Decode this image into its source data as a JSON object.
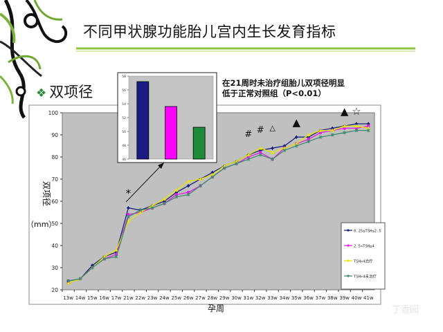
{
  "slide": {
    "title": "不同甲状腺功能胎儿宫内生长发育指标",
    "bullet": "双项径",
    "note_line1": "在21周时未治疗组胎儿双项径明显",
    "note_line2": "低于正常对照组（P<0.01）",
    "watermark": "丁香园"
  },
  "colors": {
    "plot_bg": "#c0c0c0",
    "series1": "#1b1f7a",
    "series2": "#e020e0",
    "series3": "#e8e800",
    "series4": "#3e8a6e",
    "inset_bar1": "#1a1a80",
    "inset_bar2": "#ff00ff",
    "inset_bar3": "#1f8a3a"
  },
  "chart_data": [
    {
      "type": "line",
      "title": "",
      "xlabel": "孕周",
      "ylabel": "双项径",
      "yunit": "（mm）",
      "ylim": [
        20,
        100
      ],
      "yticks": [
        20,
        30,
        40,
        50,
        60,
        70,
        80,
        90,
        100
      ],
      "grid": false,
      "legend_position": "right",
      "categories": [
        "13w",
        "14w",
        "15w",
        "16w",
        "17w",
        "21w",
        "22w",
        "23w",
        "24w",
        "25w",
        "26w",
        "27w",
        "28w",
        "29w",
        "30w",
        "31w",
        "32w",
        "33w",
        "34w",
        "35w",
        "36w",
        "37w",
        "38w",
        "39w",
        "40w",
        "41w"
      ],
      "series": [
        {
          "name": "0.25≤TSH≤2.5",
          "values": [
            24,
            25,
            31,
            35,
            37,
            57,
            56,
            58,
            60,
            64,
            67,
            70,
            73,
            76,
            78,
            81,
            83,
            84,
            85,
            89,
            89,
            92,
            93,
            94,
            95,
            95
          ]
        },
        {
          "name": "2.5<TSH≤4",
          "values": [
            23,
            25,
            30,
            34,
            36,
            54,
            55,
            57,
            59,
            63,
            64,
            67,
            71,
            75,
            77,
            80,
            82,
            79,
            84,
            86,
            88,
            91,
            92,
            93,
            93,
            94
          ]
        },
        {
          "name": "TSH>4治疗",
          "values": [
            23,
            25,
            30,
            35,
            38,
            51,
            55,
            58,
            61,
            65,
            69,
            70,
            72,
            76,
            78,
            81,
            84,
            82,
            84,
            86,
            90,
            92,
            92,
            94,
            94,
            93
          ]
        },
        {
          "name": "TSH>4未治疗",
          "values": [
            24,
            25,
            30,
            34,
            35,
            53,
            56,
            57,
            59,
            62,
            63,
            67,
            71,
            75,
            77,
            79,
            81,
            79,
            83,
            85,
            87,
            89,
            90,
            91,
            92,
            92
          ]
        }
      ],
      "annotations": [
        "*",
        "#",
        "#",
        "△",
        "▲",
        "▲",
        "☆"
      ]
    },
    {
      "type": "bar",
      "title": "",
      "ylim": [
        46,
        58
      ],
      "yticks": [
        46,
        48,
        50,
        52,
        54,
        56,
        58
      ],
      "categories": [
        "",
        "",
        ""
      ],
      "values": [
        57.2,
        53.6,
        50.6
      ]
    }
  ]
}
